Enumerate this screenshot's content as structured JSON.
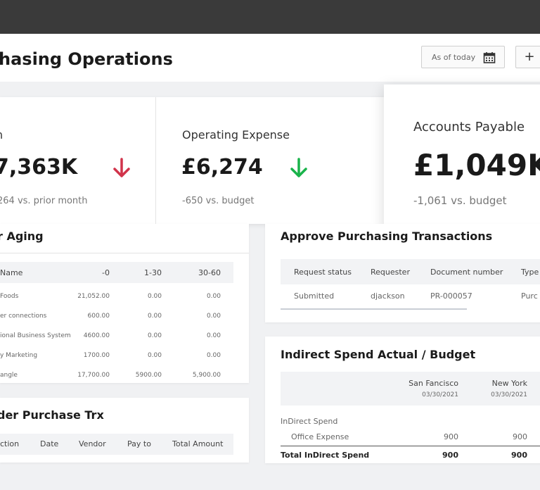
{
  "page": {
    "title": "hasing Operations"
  },
  "toolbar": {
    "date_label": "As of today",
    "add_label": "+"
  },
  "kpis": [
    {
      "label": "n",
      "value": "7,363K",
      "delta": "264 vs. prior month",
      "trend": "down",
      "trend_color": "#d1344b"
    },
    {
      "label": "Operating Expense",
      "value": "£6,274",
      "delta": "-650 vs. budget",
      "trend": "down",
      "trend_color": "#19b34a"
    },
    {
      "label": "Accounts Payable",
      "value": "£1,049K",
      "delta": "-1,061 vs. budget"
    }
  ],
  "aging": {
    "title": "r Aging",
    "columns": [
      "Name",
      "-0",
      "1-30",
      "30-60"
    ],
    "rows": [
      {
        "name": "Foods",
        "c0": "21,052.00",
        "c1": "0.00",
        "c2": "0.00"
      },
      {
        "name": "er connections",
        "c0": "600.00",
        "c1": "0.00",
        "c2": "0.00"
      },
      {
        "name": "ional Business System",
        "c0": "4600.00",
        "c1": "0.00",
        "c2": "0.00"
      },
      {
        "name": "y Marketing",
        "c0": "1700.00",
        "c1": "0.00",
        "c2": "0.00"
      },
      {
        "name": "angle",
        "c0": "17,700.00",
        "c1": "5900.00",
        "c2": "5,900.00"
      }
    ]
  },
  "trx": {
    "title": "der Purchase Trx",
    "columns": [
      "ction",
      "Date",
      "Vendor",
      "Pay to",
      "Total Amount"
    ]
  },
  "approve": {
    "title": "Approve Purchasing Transactions",
    "columns": [
      "Request status",
      "Requester",
      "Document number",
      "Type"
    ],
    "rows": [
      {
        "status": "Submitted",
        "requester": "djackson",
        "doc": "PR-000057",
        "type": "Purc"
      }
    ]
  },
  "indirect": {
    "title": "Indirect Spend Actual / Budget",
    "col1": {
      "name": "San Fancisco",
      "date": "03/30/2021"
    },
    "col2": {
      "name": "New York",
      "date": "03/30/2021"
    },
    "group": "InDirect Spend",
    "rows": [
      {
        "label": "Office Expense",
        "v1": "900",
        "v2": "900"
      }
    ],
    "total": {
      "label": "Total InDirect Spend",
      "v1": "900",
      "v2": "900"
    }
  }
}
